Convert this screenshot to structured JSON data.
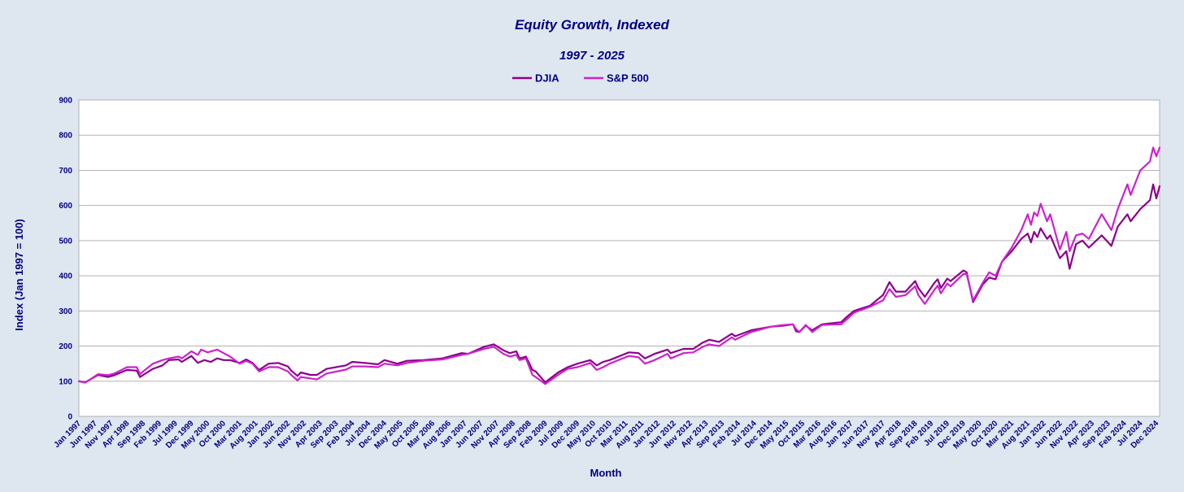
{
  "chart_data": {
    "type": "line",
    "title": "Equity Growth, Indexed",
    "subtitle": "1997 - 2025",
    "xlabel": "Month",
    "ylabel": "Index (Jan 1997 = 100)",
    "ylim": [
      0,
      900
    ],
    "yticks": [
      0,
      100,
      200,
      300,
      400,
      500,
      600,
      700,
      800,
      900
    ],
    "grid": true,
    "legend_position": "top-center",
    "x_start": "Jan 1997",
    "x_end": "Jan 2025",
    "xtick_labels": [
      "Jan 1997",
      "Jun 1997",
      "Nov 1997",
      "Apr 1998",
      "Sep 1998",
      "Feb 1999",
      "Jul 1999",
      "Dec 1999",
      "May 2000",
      "Oct 2000",
      "Mar 2001",
      "Aug 2001",
      "Jan 2002",
      "Jun 2002",
      "Nov 2002",
      "Apr 2003",
      "Sep 2003",
      "Feb 2004",
      "Jul 2004",
      "Dec 2004",
      "May 2005",
      "Oct 2005",
      "Mar 2006",
      "Aug 2006",
      "Jan 2007",
      "Jun 2007",
      "Nov 2007",
      "Apr 2008",
      "Sep 2008",
      "Feb 2009",
      "Jul 2009",
      "Dec 2009",
      "May 2010",
      "Oct 2010",
      "Mar 2011",
      "Aug 2011",
      "Jan 2012",
      "Jun 2012",
      "Nov 2012",
      "Apr 2013",
      "Sep 2013",
      "Feb 2014",
      "Jul 2014",
      "Dec 2014",
      "May 2015",
      "Oct 2015",
      "Mar 2016",
      "Aug 2016",
      "Jan 2017",
      "Jun 2017",
      "Nov 2017",
      "Apr 2018",
      "Sep 2018",
      "Feb 2019",
      "Jul 2019",
      "Dec 2019",
      "May 2020",
      "Oct 2020",
      "Mar 2021",
      "Aug 2021",
      "Jan 2022",
      "Jun 2022",
      "Nov 2022",
      "Apr 2023",
      "Sep 2023",
      "Feb 2024",
      "Jul 2024",
      "Dec 2024"
    ],
    "series": [
      {
        "name": "DJIA",
        "color": "#8b008b",
        "points": [
          [
            "Jan 1997",
            100
          ],
          [
            "Mar 1997",
            97
          ],
          [
            "Jul 1997",
            118
          ],
          [
            "Oct 1997",
            112
          ],
          [
            "Dec 1997",
            117
          ],
          [
            "Apr 1998",
            132
          ],
          [
            "Jul 1998",
            130
          ],
          [
            "Aug 1998",
            112
          ],
          [
            "Sep 1998",
            118
          ],
          [
            "Dec 1998",
            135
          ],
          [
            "Mar 1999",
            145
          ],
          [
            "May 1999",
            160
          ],
          [
            "Aug 1999",
            162
          ],
          [
            "Sep 1999",
            155
          ],
          [
            "Dec 1999",
            172
          ],
          [
            "Feb 2000",
            152
          ],
          [
            "Apr 2000",
            160
          ],
          [
            "Jun 2000",
            155
          ],
          [
            "Aug 2000",
            165
          ],
          [
            "Oct 2000",
            160
          ],
          [
            "Dec 2000",
            160
          ],
          [
            "Mar 2001",
            152
          ],
          [
            "May 2001",
            162
          ],
          [
            "Jul 2001",
            152
          ],
          [
            "Sep 2001",
            132
          ],
          [
            "Dec 2001",
            150
          ],
          [
            "Mar 2002",
            152
          ],
          [
            "Jun 2002",
            142
          ],
          [
            "Jul 2002",
            130
          ],
          [
            "Sep 2002",
            115
          ],
          [
            "Oct 2002",
            125
          ],
          [
            "Jan 2003",
            118
          ],
          [
            "Mar 2003",
            118
          ],
          [
            "Jun 2003",
            135
          ],
          [
            "Dec 2003",
            145
          ],
          [
            "Feb 2004",
            155
          ],
          [
            "Jun 2004",
            152
          ],
          [
            "Oct 2004",
            148
          ],
          [
            "Dec 2004",
            160
          ],
          [
            "Apr 2005",
            150
          ],
          [
            "Jul 2005",
            158
          ],
          [
            "Dec 2005,",
            160
          ],
          [
            "Jun 2006",
            165
          ],
          [
            "Dec 2006",
            180
          ],
          [
            "Feb 2007",
            178
          ],
          [
            "Jul 2007",
            198
          ],
          [
            "Oct 2007",
            205
          ],
          [
            "Jan 2008",
            188
          ],
          [
            "Mar 2008",
            180
          ],
          [
            "May 2008",
            185
          ],
          [
            "Jun 2008",
            165
          ],
          [
            "Aug 2008",
            170
          ],
          [
            "Oct 2008",
            132
          ],
          [
            "Nov 2008",
            128
          ],
          [
            "Feb 2009",
            97
          ],
          [
            "Jun 2009",
            125
          ],
          [
            "Sep 2009",
            140
          ],
          [
            "Dec 2009",
            150
          ],
          [
            "Apr 2010",
            160
          ],
          [
            "Jun 2010",
            145
          ],
          [
            "Aug 2010",
            155
          ],
          [
            "Oct 2010",
            160
          ],
          [
            "Apr 2011",
            182
          ],
          [
            "Jul 2011",
            180
          ],
          [
            "Sep 2011",
            165
          ],
          [
            "Dec 2011",
            178
          ],
          [
            "Apr 2012",
            190
          ],
          [
            "May 2012",
            180
          ],
          [
            "Sep 2012",
            192
          ],
          [
            "Dec 2012",
            192
          ],
          [
            "Mar 2013",
            210
          ],
          [
            "May 2013",
            218
          ],
          [
            "Aug 2013",
            212
          ],
          [
            "Dec 2013",
            235
          ],
          [
            "Jan 2014",
            228
          ],
          [
            "Jun 2014",
            245
          ],
          [
            "Dec 2014",
            255
          ],
          [
            "Apr 2015",
            258
          ],
          [
            "Jul 2015",
            262
          ],
          [
            "Aug 2015",
            242
          ],
          [
            "Sep 2015",
            240
          ],
          [
            "Nov 2015",
            258
          ],
          [
            "Jan 2016",
            245
          ],
          [
            "Apr 2016",
            262
          ],
          [
            "Oct 2016",
            268
          ],
          [
            "Dec 2016",
            285
          ],
          [
            "Feb 2017",
            300
          ],
          [
            "Jul 2017",
            315
          ],
          [
            "Nov 2017",
            345
          ],
          [
            "Jan 2018",
            382
          ],
          [
            "Mar 2018",
            355
          ],
          [
            "Jun 2018",
            355
          ],
          [
            "Sep 2018",
            385
          ],
          [
            "Oct 2018",
            365
          ],
          [
            "Dec 2018",
            340
          ],
          [
            "Mar 2019",
            380
          ],
          [
            "Apr 2019",
            390
          ],
          [
            "May 2019",
            365
          ],
          [
            "Jul 2019",
            392
          ],
          [
            "Aug 2019",
            385
          ],
          [
            "Dec 2019",
            415
          ],
          [
            "Jan 2020",
            410
          ],
          [
            "Mar 2020",
            325
          ],
          [
            "Jun 2020",
            375
          ],
          [
            "Aug 2020",
            395
          ],
          [
            "Oct 2020",
            390
          ],
          [
            "Dec 2020",
            440
          ],
          [
            "Mar 2021",
            470
          ],
          [
            "Jun 2021",
            505
          ],
          [
            "Aug 2021",
            520
          ],
          [
            "Sep 2021",
            495
          ],
          [
            "Oct 2021",
            525
          ],
          [
            "Nov 2021",
            510
          ],
          [
            "Dec 2021",
            535
          ],
          [
            "Feb 2022",
            505
          ],
          [
            "Mar 2022",
            515
          ],
          [
            "Jun 2022",
            450
          ],
          [
            "Aug 2022",
            470
          ],
          [
            "Sep 2022",
            420
          ],
          [
            "Nov 2022",
            490
          ],
          [
            "Jan 2023",
            500
          ],
          [
            "Mar 2023",
            480
          ],
          [
            "Jul 2023",
            515
          ],
          [
            "Oct 2023",
            485
          ],
          [
            "Dec 2023",
            540
          ],
          [
            "Mar 2024",
            575
          ],
          [
            "Apr 2024",
            555
          ],
          [
            "Jul 2024",
            590
          ],
          [
            "Oct 2024",
            615
          ],
          [
            "Nov 2024",
            660
          ],
          [
            "Dec 2024",
            620
          ],
          [
            "Jan 2025",
            655
          ]
        ]
      },
      {
        "name": "S&P 500",
        "color": "#cc22cc",
        "points": [
          [
            "Jan 1997",
            100
          ],
          [
            "Mar 1997",
            96
          ],
          [
            "Jul 1997",
            120
          ],
          [
            "Oct 1997",
            117
          ],
          [
            "Dec 1997",
            122
          ],
          [
            "Apr 1998",
            140
          ],
          [
            "Jul 1998",
            140
          ],
          [
            "Aug 1998",
            120
          ],
          [
            "Sep 1998",
            128
          ],
          [
            "Dec 1998",
            150
          ],
          [
            "Mar 1999",
            160
          ],
          [
            "May 1999",
            165
          ],
          [
            "Aug 1999",
            170
          ],
          [
            "Sep 1999",
            165
          ],
          [
            "Dec 1999",
            185
          ],
          [
            "Feb 2000",
            175
          ],
          [
            "Mar 2000",
            190
          ],
          [
            "May 2000",
            182
          ],
          [
            "Aug 2000",
            190
          ],
          [
            "Oct 2000",
            180
          ],
          [
            "Dec 2000",
            170
          ],
          [
            "Mar 2001",
            150
          ],
          [
            "May 2001",
            158
          ],
          [
            "Jul 2001",
            150
          ],
          [
            "Sep 2001",
            128
          ],
          [
            "Dec 2001",
            140
          ],
          [
            "Mar 2002",
            140
          ],
          [
            "Jun 2002",
            128
          ],
          [
            "Jul 2002",
            118
          ],
          [
            "Sep 2002",
            102
          ],
          [
            "Oct 2002",
            112
          ],
          [
            "Jan 2003",
            108
          ],
          [
            "Mar 2003",
            105
          ],
          [
            "Jun 2003",
            122
          ],
          [
            "Dec 2003",
            133
          ],
          [
            "Feb 2004",
            142
          ],
          [
            "Jun 2004",
            142
          ],
          [
            "Oct 2004",
            140
          ],
          [
            "Dec 2004",
            150
          ],
          [
            "Apr 2005",
            145
          ],
          [
            "Jul 2005",
            152
          ],
          [
            "Dec 2005",
            158
          ],
          [
            "Jun 2006",
            162
          ],
          [
            "Dec 2006",
            175
          ],
          [
            "Feb 2007",
            178
          ],
          [
            "Jul 2007",
            192
          ],
          [
            "Oct 2007",
            198
          ],
          [
            "Jan 2008",
            178
          ],
          [
            "Mar 2008",
            170
          ],
          [
            "May 2008",
            175
          ],
          [
            "Jun 2008",
            160
          ],
          [
            "Aug 2008",
            165
          ],
          [
            "Oct 2008",
            118
          ],
          [
            "Nov 2008",
            112
          ],
          [
            "Feb 2009",
            92
          ],
          [
            "Jun 2009",
            118
          ],
          [
            "Sep 2009",
            135
          ],
          [
            "Dec 2009",
            140
          ],
          [
            "Apr 2010",
            152
          ],
          [
            "Jun 2010",
            132
          ],
          [
            "Aug 2010",
            140
          ],
          [
            "Oct 2010",
            150
          ],
          [
            "Apr 2011",
            172
          ],
          [
            "Jul 2011",
            168
          ],
          [
            "Sep 2011",
            150
          ],
          [
            "Dec 2011",
            160
          ],
          [
            "Apr 2012",
            178
          ],
          [
            "May 2012",
            165
          ],
          [
            "Sep 2012",
            180
          ],
          [
            "Dec 2012",
            182
          ],
          [
            "Mar 2013",
            198
          ],
          [
            "May 2013",
            205
          ],
          [
            "Aug 2013",
            200
          ],
          [
            "Dec 2013",
            225
          ],
          [
            "Jan 2014",
            218
          ],
          [
            "Jun 2014",
            240
          ],
          [
            "Dec 2014",
            255
          ],
          [
            "Apr 2015",
            260
          ],
          [
            "Jul 2015",
            262
          ],
          [
            "Aug 2015",
            248
          ],
          [
            "Sep 2015",
            240
          ],
          [
            "Nov 2015",
            260
          ],
          [
            "Jan 2016",
            240
          ],
          [
            "Apr 2016",
            260
          ],
          [
            "Oct 2016",
            262
          ],
          [
            "Dec 2016",
            278
          ],
          [
            "Feb 2017",
            295
          ],
          [
            "Jul 2017",
            312
          ],
          [
            "Nov 2017",
            330
          ],
          [
            "Jan 2018",
            362
          ],
          [
            "Mar 2018",
            340
          ],
          [
            "Jun 2018",
            345
          ],
          [
            "Sep 2018",
            370
          ],
          [
            "Oct 2018",
            345
          ],
          [
            "Dec 2018",
            320
          ],
          [
            "Mar 2019",
            360
          ],
          [
            "Apr 2019",
            372
          ],
          [
            "May 2019",
            350
          ],
          [
            "Jul 2019",
            378
          ],
          [
            "Aug 2019",
            370
          ],
          [
            "Dec 2019",
            405
          ],
          [
            "Jan 2020",
            405
          ],
          [
            "Mar 2020",
            330
          ],
          [
            "Jun 2020",
            380
          ],
          [
            "Aug 2020",
            410
          ],
          [
            "Oct 2020",
            400
          ],
          [
            "Dec 2020",
            440
          ],
          [
            "Mar 2021",
            480
          ],
          [
            "Jun 2021",
            530
          ],
          [
            "Aug 2021",
            575
          ],
          [
            "Sep 2021",
            545
          ],
          [
            "Oct 2021",
            580
          ],
          [
            "Nov 2021",
            570
          ],
          [
            "Dec 2021",
            605
          ],
          [
            "Feb 2022",
            555
          ],
          [
            "Mar 2022",
            575
          ],
          [
            "Jun 2022",
            475
          ],
          [
            "Aug 2022",
            525
          ],
          [
            "Sep 2022",
            470
          ],
          [
            "Nov 2022",
            515
          ],
          [
            "Jan 2023",
            520
          ],
          [
            "Mar 2023",
            505
          ],
          [
            "Jul 2023",
            575
          ],
          [
            "Oct 2023",
            530
          ],
          [
            "Dec 2023",
            590
          ],
          [
            "Mar 2024",
            660
          ],
          [
            "Apr 2024",
            630
          ],
          [
            "Jul 2024",
            700
          ],
          [
            "Oct 2024",
            725
          ],
          [
            "Nov 2024",
            765
          ],
          [
            "Dec 2024",
            740
          ],
          [
            "Jan 2025",
            765
          ]
        ]
      }
    ]
  }
}
